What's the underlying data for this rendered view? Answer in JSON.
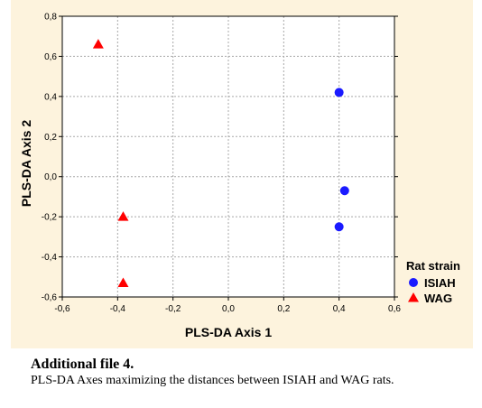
{
  "chart_data": {
    "type": "scatter",
    "title": "",
    "xlabel": "PLS-DA Axis 1",
    "ylabel": "PLS-DA Axis 2",
    "xlim": [
      -0.6,
      0.6
    ],
    "ylim": [
      -0.6,
      0.8
    ],
    "x_ticks": [
      "-0,6",
      "-0,4",
      "-0,2",
      "0,0",
      "0,2",
      "0,4",
      "0,6"
    ],
    "y_ticks": [
      "-0,6",
      "-0,4",
      "-0,2",
      "0,0",
      "0,2",
      "0,4",
      "0,6",
      "0,8"
    ],
    "grid": true,
    "legend": {
      "title": "Rat strain",
      "placement": "right"
    },
    "series": [
      {
        "name": "ISIAH",
        "marker": "circle",
        "color": "#1a1aff",
        "points": [
          {
            "x": 0.4,
            "y": 0.42
          },
          {
            "x": 0.42,
            "y": -0.07
          },
          {
            "x": 0.4,
            "y": -0.25
          }
        ]
      },
      {
        "name": "WAG",
        "marker": "triangle",
        "color": "#ff0000",
        "points": [
          {
            "x": -0.47,
            "y": 0.66
          },
          {
            "x": -0.38,
            "y": -0.2
          },
          {
            "x": -0.38,
            "y": -0.53
          }
        ]
      }
    ]
  },
  "caption": {
    "title": "Additional file 4.",
    "text": "PLS-DA Axes maximizing the distances between ISIAH and WAG rats."
  }
}
